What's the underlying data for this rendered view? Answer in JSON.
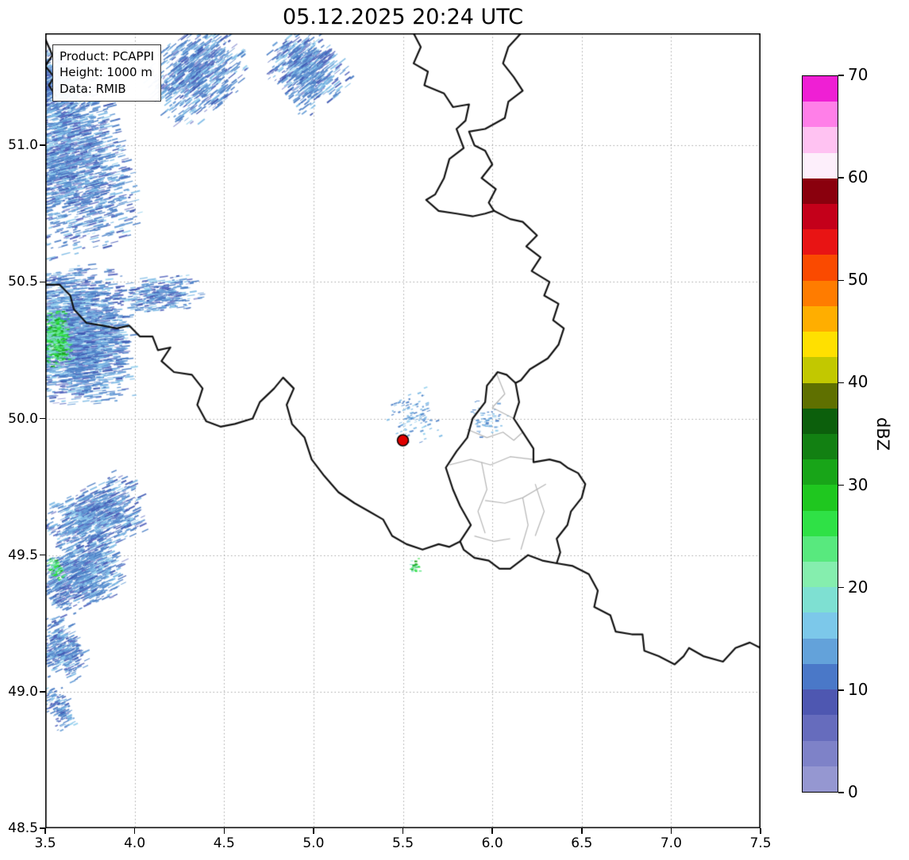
{
  "title": "05.12.2025 20:24 UTC",
  "info_box": {
    "lines": [
      "Product: PCAPPI",
      "Height: 1000 m",
      "Data: RMIB"
    ]
  },
  "axes": {
    "x_ticks": [
      "3.5",
      "4.0",
      "4.5",
      "5.0",
      "5.5",
      "6.0",
      "6.5",
      "7.0",
      "7.5"
    ],
    "y_ticks": [
      "48.5",
      "49.0",
      "49.5",
      "50.0",
      "50.5",
      "51.0"
    ]
  },
  "colorbar": {
    "label": "dBZ",
    "ticks": [
      "0",
      "10",
      "20",
      "30",
      "40",
      "50",
      "60",
      "70"
    ],
    "vmin": 0,
    "vmax": 70,
    "colors_bottom_to_top": [
      "#9597d1",
      "#7e82c8",
      "#666cbd",
      "#4e57b1",
      "#4a78c8",
      "#63a2da",
      "#7cc8ea",
      "#7ee0d2",
      "#85eeae",
      "#58e97e",
      "#2fe146",
      "#1fc71f",
      "#18a518",
      "#128012",
      "#0c5f0c",
      "#5f7000",
      "#c2c800",
      "#ffe000",
      "#ffae00",
      "#ff7c00",
      "#fa4a00",
      "#e81414",
      "#c4001a",
      "#8a000d",
      "#fdeffb",
      "#ffc2f2",
      "#ff7fe8",
      "#ef1fd4"
    ]
  },
  "chart_data": {
    "type": "heatmap",
    "title": "05.12.2025 20:24 UTC",
    "product": "PCAPPI",
    "height": "1000 m",
    "data_source": "RMIB",
    "units": "dBZ",
    "x_range": [
      3.5,
      7.5
    ],
    "y_range": [
      48.5,
      51.41
    ],
    "x_tick_vals": [
      3.5,
      4.0,
      4.5,
      5.0,
      5.5,
      6.0,
      6.5,
      7.0,
      7.5
    ],
    "y_tick_vals": [
      48.5,
      49.0,
      49.5,
      50.0,
      50.5,
      51.0
    ],
    "grid": true,
    "colorbar_range": [
      0,
      70
    ],
    "radar_marker": {
      "lon": 5.5,
      "lat": 49.92,
      "fill": "#e00000",
      "edge": "#000000"
    },
    "grid_color": "#a6a6a6",
    "border_color": "#111111",
    "district_color": "#b4b4b4",
    "borders": [
      [
        [
          3.5,
          51.39
        ],
        [
          3.54,
          51.33
        ],
        [
          3.5,
          51.29
        ],
        [
          3.55,
          51.25
        ],
        [
          3.52,
          51.22
        ],
        [
          3.56,
          51.18
        ]
      ],
      [
        [
          5.56,
          51.41
        ],
        [
          5.6,
          51.36
        ],
        [
          5.56,
          51.3
        ],
        [
          5.64,
          51.27
        ],
        [
          5.62,
          51.22
        ],
        [
          5.73,
          51.19
        ],
        [
          5.78,
          51.14
        ],
        [
          5.87,
          51.15
        ],
        [
          5.85,
          51.09
        ],
        [
          5.8,
          51.06
        ],
        [
          5.84,
          50.99
        ],
        [
          5.76,
          50.95
        ],
        [
          5.73,
          50.88
        ],
        [
          5.68,
          50.82
        ],
        [
          5.63,
          50.8
        ],
        [
          5.7,
          50.76
        ],
        [
          5.8,
          50.75
        ],
        [
          5.89,
          50.74
        ],
        [
          5.96,
          50.75
        ],
        [
          6.01,
          50.76
        ]
      ],
      [
        [
          6.16,
          51.41
        ],
        [
          6.09,
          51.36
        ],
        [
          6.06,
          51.3
        ],
        [
          6.12,
          51.25
        ],
        [
          6.17,
          51.2
        ],
        [
          6.09,
          51.16
        ],
        [
          6.07,
          51.1
        ],
        [
          5.96,
          51.06
        ],
        [
          5.87,
          51.05
        ],
        [
          5.9,
          51.0
        ],
        [
          5.96,
          50.98
        ],
        [
          6.0,
          50.93
        ],
        [
          5.94,
          50.88
        ],
        [
          6.02,
          50.84
        ],
        [
          5.98,
          50.79
        ],
        [
          6.01,
          50.76
        ]
      ],
      [
        [
          6.01,
          50.76
        ],
        [
          6.1,
          50.73
        ],
        [
          6.17,
          50.72
        ],
        [
          6.25,
          50.67
        ],
        [
          6.19,
          50.63
        ],
        [
          6.27,
          50.59
        ],
        [
          6.22,
          50.54
        ],
        [
          6.32,
          50.5
        ],
        [
          6.29,
          50.45
        ],
        [
          6.37,
          50.42
        ],
        [
          6.34,
          50.36
        ],
        [
          6.4,
          50.33
        ],
        [
          6.37,
          50.27
        ],
        [
          6.31,
          50.22
        ],
        [
          6.21,
          50.18
        ],
        [
          6.16,
          50.14
        ],
        [
          6.13,
          50.13
        ]
      ],
      [
        [
          6.13,
          50.13
        ],
        [
          6.15,
          50.06
        ],
        [
          6.12,
          50.0
        ],
        [
          6.17,
          49.95
        ],
        [
          6.23,
          49.89
        ],
        [
          6.23,
          49.84
        ],
        [
          6.32,
          49.85
        ],
        [
          6.38,
          49.84
        ],
        [
          6.42,
          49.82
        ],
        [
          6.48,
          49.8
        ],
        [
          6.52,
          49.76
        ],
        [
          6.5,
          49.71
        ],
        [
          6.44,
          49.66
        ],
        [
          6.42,
          49.61
        ],
        [
          6.36,
          49.56
        ],
        [
          6.38,
          49.51
        ],
        [
          6.36,
          49.47
        ],
        [
          6.28,
          49.48
        ],
        [
          6.2,
          49.5
        ],
        [
          6.1,
          49.45
        ],
        [
          6.04,
          49.45
        ],
        [
          5.98,
          49.48
        ],
        [
          5.9,
          49.49
        ],
        [
          5.84,
          49.52
        ],
        [
          5.82,
          49.55
        ],
        [
          5.88,
          49.61
        ],
        [
          5.82,
          49.68
        ],
        [
          5.78,
          49.74
        ],
        [
          5.74,
          49.82
        ],
        [
          5.8,
          49.88
        ],
        [
          5.86,
          49.93
        ],
        [
          5.89,
          50.0
        ],
        [
          5.96,
          50.06
        ],
        [
          5.97,
          50.12
        ],
        [
          6.03,
          50.17
        ],
        [
          6.08,
          50.16
        ],
        [
          6.13,
          50.13
        ]
      ],
      [
        [
          3.5,
          50.49
        ],
        [
          3.58,
          50.49
        ],
        [
          3.64,
          50.45
        ],
        [
          3.66,
          50.4
        ],
        [
          3.73,
          50.35
        ],
        [
          3.82,
          50.34
        ],
        [
          3.9,
          50.33
        ],
        [
          3.97,
          50.34
        ],
        [
          4.03,
          50.3
        ],
        [
          4.1,
          50.3
        ],
        [
          4.13,
          50.25
        ],
        [
          4.2,
          50.26
        ],
        [
          4.15,
          50.21
        ],
        [
          4.22,
          50.17
        ],
        [
          4.32,
          50.16
        ],
        [
          4.38,
          50.11
        ],
        [
          4.35,
          50.05
        ],
        [
          4.4,
          49.99
        ],
        [
          4.48,
          49.97
        ],
        [
          4.56,
          49.98
        ],
        [
          4.66,
          50.0
        ],
        [
          4.7,
          50.06
        ],
        [
          4.78,
          50.11
        ],
        [
          4.83,
          50.15
        ],
        [
          4.89,
          50.11
        ],
        [
          4.85,
          50.05
        ],
        [
          4.88,
          49.98
        ],
        [
          4.95,
          49.93
        ],
        [
          4.99,
          49.85
        ],
        [
          5.06,
          49.79
        ],
        [
          5.14,
          49.73
        ],
        [
          5.23,
          49.69
        ],
        [
          5.31,
          49.66
        ],
        [
          5.39,
          49.63
        ],
        [
          5.44,
          49.57
        ],
        [
          5.52,
          49.54
        ],
        [
          5.61,
          49.52
        ],
        [
          5.7,
          49.54
        ],
        [
          5.76,
          49.53
        ],
        [
          5.82,
          49.55
        ]
      ],
      [
        [
          6.36,
          49.47
        ],
        [
          6.45,
          49.46
        ],
        [
          6.54,
          49.43
        ],
        [
          6.59,
          49.37
        ],
        [
          6.57,
          49.31
        ],
        [
          6.66,
          49.28
        ],
        [
          6.69,
          49.22
        ],
        [
          6.78,
          49.21
        ],
        [
          6.84,
          49.21
        ],
        [
          6.85,
          49.15
        ],
        [
          6.93,
          49.13
        ],
        [
          7.02,
          49.1
        ],
        [
          7.07,
          49.13
        ],
        [
          7.1,
          49.16
        ],
        [
          7.18,
          49.13
        ],
        [
          7.29,
          49.11
        ],
        [
          7.36,
          49.16
        ],
        [
          7.44,
          49.18
        ],
        [
          7.5,
          49.16
        ]
      ]
    ],
    "districts": [
      [
        [
          6.02,
          50.17
        ],
        [
          6.07,
          50.09
        ],
        [
          6.0,
          50.04
        ],
        [
          6.12,
          50.0
        ]
      ],
      [
        [
          5.86,
          49.96
        ],
        [
          5.97,
          49.93
        ],
        [
          6.06,
          49.95
        ],
        [
          6.12,
          49.92
        ],
        [
          6.17,
          49.95
        ]
      ],
      [
        [
          5.76,
          49.83
        ],
        [
          5.88,
          49.85
        ],
        [
          5.99,
          49.83
        ],
        [
          6.1,
          49.86
        ],
        [
          6.23,
          49.85
        ]
      ],
      [
        [
          5.94,
          49.84
        ],
        [
          5.97,
          49.74
        ],
        [
          5.92,
          49.66
        ],
        [
          5.96,
          49.58
        ]
      ],
      [
        [
          5.96,
          49.7
        ],
        [
          6.07,
          49.69
        ],
        [
          6.17,
          49.71
        ],
        [
          6.3,
          49.76
        ]
      ],
      [
        [
          6.24,
          49.76
        ],
        [
          6.29,
          49.66
        ],
        [
          6.24,
          49.57
        ]
      ],
      [
        [
          6.17,
          49.71
        ],
        [
          6.2,
          49.61
        ],
        [
          6.16,
          49.52
        ]
      ],
      [
        [
          5.9,
          49.57
        ],
        [
          6.01,
          49.55
        ],
        [
          6.1,
          49.56
        ]
      ]
    ],
    "palettes": {
      "blue": [
        [
          "#3f58b2",
          0.1
        ],
        [
          "#5868bf",
          0.1
        ],
        [
          "#4d7fc6",
          0.28
        ],
        [
          "#659cd6",
          0.22
        ],
        [
          "#7fbce6",
          0.18
        ],
        [
          "#97d2ee",
          0.07
        ],
        [
          "#9a9ed6",
          0.05
        ]
      ],
      "green": [
        [
          "#7de2cf",
          0.25
        ],
        [
          "#62e88a",
          0.3
        ],
        [
          "#2ade3e",
          0.25
        ],
        [
          "#18a518",
          0.2
        ]
      ],
      "blue_small": [
        [
          "#659cd6",
          0.3
        ],
        [
          "#7fbce6",
          0.4
        ],
        [
          "#4d7fc6",
          0.2
        ],
        [
          "#97d2ee",
          0.1
        ]
      ]
    },
    "echo_regions": [
      {
        "cx": 4.33,
        "cy": 51.26,
        "sx": 0.3,
        "sy": 0.16,
        "angle": -38,
        "n": 800,
        "palette": "blue",
        "seg": [
          3,
          12
        ]
      },
      {
        "cx": 4.95,
        "cy": 51.27,
        "sx": 0.2,
        "sy": 0.15,
        "angle": -38,
        "n": 650,
        "palette": "blue",
        "seg": [
          3,
          12
        ]
      },
      {
        "cx": 3.62,
        "cy": 50.95,
        "sx": 0.34,
        "sy": 0.36,
        "angle": -15,
        "n": 2000,
        "palette": "blue",
        "seg": [
          3,
          13
        ]
      },
      {
        "cx": 3.55,
        "cy": 51.22,
        "sx": 0.12,
        "sy": 0.14,
        "angle": -30,
        "n": 450,
        "palette": "blue",
        "seg": [
          3,
          10
        ]
      },
      {
        "cx": 3.66,
        "cy": 50.3,
        "sx": 0.32,
        "sy": 0.26,
        "angle": -6,
        "n": 2400,
        "palette": "blue",
        "seg": [
          3,
          13
        ]
      },
      {
        "cx": 3.56,
        "cy": 50.29,
        "sx": 0.09,
        "sy": 0.11,
        "angle": -6,
        "n": 450,
        "palette": "green",
        "seg": [
          2,
          6
        ]
      },
      {
        "cx": 4.12,
        "cy": 50.45,
        "sx": 0.26,
        "sy": 0.07,
        "angle": -8,
        "n": 300,
        "palette": "blue",
        "seg": [
          3,
          11
        ]
      },
      {
        "cx": 3.76,
        "cy": 49.63,
        "sx": 0.3,
        "sy": 0.13,
        "angle": -25,
        "n": 850,
        "palette": "blue",
        "seg": [
          3,
          12
        ]
      },
      {
        "cx": 3.69,
        "cy": 49.42,
        "sx": 0.26,
        "sy": 0.12,
        "angle": -25,
        "n": 750,
        "palette": "blue",
        "seg": [
          3,
          12
        ]
      },
      {
        "cx": 3.55,
        "cy": 49.45,
        "sx": 0.04,
        "sy": 0.05,
        "angle": -25,
        "n": 60,
        "palette": "green",
        "seg": [
          2,
          5
        ]
      },
      {
        "cx": 3.58,
        "cy": 49.15,
        "sx": 0.13,
        "sy": 0.13,
        "angle": -25,
        "n": 330,
        "palette": "blue",
        "seg": [
          3,
          10
        ]
      },
      {
        "cx": 3.57,
        "cy": 48.94,
        "sx": 0.07,
        "sy": 0.09,
        "angle": -25,
        "n": 130,
        "palette": "blue",
        "seg": [
          2,
          8
        ]
      },
      {
        "cx": 5.55,
        "cy": 50.0,
        "sx": 0.14,
        "sy": 0.11,
        "angle": -20,
        "n": 110,
        "palette": "blue_small",
        "seg": [
          2,
          5
        ]
      },
      {
        "cx": 5.97,
        "cy": 50.0,
        "sx": 0.12,
        "sy": 0.07,
        "angle": 0,
        "n": 55,
        "palette": "blue_small",
        "seg": [
          2,
          5
        ]
      },
      {
        "cx": 5.56,
        "cy": 49.46,
        "sx": 0.035,
        "sy": 0.03,
        "angle": 0,
        "n": 30,
        "palette": "green",
        "seg": [
          2,
          4
        ]
      }
    ]
  }
}
